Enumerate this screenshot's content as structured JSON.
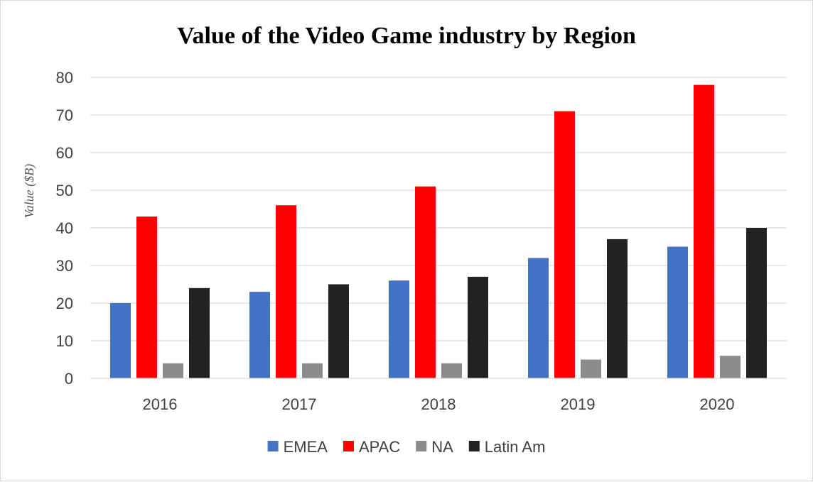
{
  "chart_data": {
    "type": "bar",
    "title": "Value of the Video Game industry by Region",
    "xlabel": "",
    "ylabel": "Value ($B)",
    "ylim": [
      0,
      80
    ],
    "yticks": [
      0,
      10,
      20,
      30,
      40,
      50,
      60,
      70,
      80
    ],
    "grid": true,
    "legend_position": "bottom",
    "categories": [
      "2016",
      "2017",
      "2018",
      "2019",
      "2020"
    ],
    "series": [
      {
        "name": "EMEA",
        "color": "#4472C4",
        "values": [
          20,
          23,
          26,
          32,
          35
        ]
      },
      {
        "name": "APAC",
        "color": "#FF0000",
        "values": [
          43,
          46,
          51,
          71,
          78
        ]
      },
      {
        "name": "NA",
        "color": "#8C8C8C",
        "values": [
          4,
          4,
          4,
          5,
          6
        ]
      },
      {
        "name": "Latin Am",
        "color": "#222222",
        "values": [
          24,
          25,
          27,
          37,
          40
        ]
      }
    ]
  }
}
